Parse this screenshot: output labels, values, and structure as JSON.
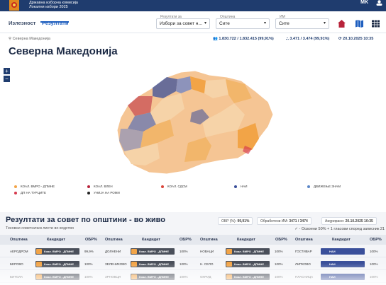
{
  "header": {
    "site_title_line1": "Државна изборна комисија",
    "site_title_line2": "Локални избори 2025",
    "lang": "MK"
  },
  "nav": {
    "tabs": [
      "Излезност",
      "Резултати"
    ],
    "active_tab": "Резултати",
    "selects": [
      {
        "label": "Резултати за",
        "value": "Избори за совет н..."
      },
      {
        "label": "Општина",
        "value": "Сите"
      },
      {
        "label": "ИМ",
        "value": "Сите"
      }
    ],
    "icons": [
      "home-icon",
      "map-icon",
      "table-icon"
    ]
  },
  "breadcrumb": "Северна Македонија",
  "stats": {
    "voters": "1.830.722 / 1.832.415 (99,91%)",
    "polling_stations": "3.471 / 3.474 (99,91%)",
    "updated": "20.10.2025 10:35"
  },
  "page_title": "Северна Македонија",
  "map": {
    "zoom_in": "+",
    "zoom_out": "−"
  },
  "legend": [
    {
      "label": "КОАЛ. ВМРО - ДПМНЕ",
      "color": "#f2a447"
    },
    {
      "label": "КОАЛ. ВЛЕН",
      "color": "#b8233a"
    },
    {
      "label": "КОАЛ. СДСМ",
      "color": "#d9463a"
    },
    {
      "label": "НАИ",
      "color": "#3a4f9a"
    },
    {
      "label": "ДВИЖЕЊЕ ЗНАМ",
      "color": "#5b86c7"
    },
    {
      "label": "ДП НА ТУРЦИТЕ",
      "color": "#d6394d"
    },
    {
      "label": "УНИЈА НА РОМИ",
      "color": "#222222"
    }
  ],
  "results": {
    "title": "Резултати за совет по општини - во живо",
    "turnout_label": "ОБР (%):",
    "turnout_value": "99,91%",
    "processed_label": "Обработени ИМ:",
    "processed_value": "3471 / 3474",
    "updated_label": "Ажурирано:",
    "updated_value": "20.10.2025 10:35",
    "subtitle": "Тековни советнички листи во водство",
    "note": "- Освоени 50% + 1 гласови според записник 21",
    "columns": [
      "Општина",
      "Кандидат",
      "ОБР%",
      "Општина",
      "Кандидат",
      "ОБР%",
      "Општина",
      "Кандидат",
      "ОБР%",
      "Општина",
      "Кандидат",
      "ОБР%"
    ],
    "rows": [
      [
        {
          "municipality": "АЕРОДРОМ",
          "candidate": "Коал. ВМРО - ДПМНЕ",
          "pct": "99,9%",
          "color": "#f2a447"
        },
        {
          "municipality": "ДОЛНЕНИ",
          "candidate": "Коал. ВМРО - ДПМНЕ",
          "pct": "100%",
          "color": "#f2a447"
        },
        {
          "municipality": "НОВАЦИ",
          "candidate": "Коал. ВМРО - ДПМНЕ",
          "pct": "100%",
          "color": "#f2a447"
        },
        {
          "municipality": "ГОСТИВАР",
          "candidate": "НАИ",
          "pct": "100%",
          "color": "#3a4f9a"
        }
      ],
      [
        {
          "municipality": "БЕРОВО",
          "candidate": "Коал. ВМРО - ДПМНЕ",
          "pct": "100%",
          "color": "#f2a447"
        },
        {
          "municipality": "ЗЕЛЕНИКОВО",
          "candidate": "Коал. ВМРО - ДПМНЕ",
          "pct": "100%",
          "color": "#f2a447"
        },
        {
          "municipality": "Н. СЕЛО",
          "candidate": "Коал. ВМРО - ДПМНЕ",
          "pct": "100%",
          "color": "#f2a447"
        },
        {
          "municipality": "ЛИПКОВО",
          "candidate": "НАИ",
          "pct": "100%",
          "color": "#3a4f9a"
        }
      ],
      [
        {
          "municipality": "БИТОЛА",
          "candidate": "Коал. ВМРО - ДПМНЕ",
          "pct": "100%",
          "color": "#f2a447"
        },
        {
          "municipality": "ЗРНОВЦИ",
          "candidate": "Коал. ВМРО - ДПМНЕ",
          "pct": "100%",
          "color": "#f2a447"
        },
        {
          "municipality": "ОХРИД",
          "candidate": "Коал. ВМРО - ДПМНЕ",
          "pct": "100%",
          "color": "#f2a447"
        },
        {
          "municipality": "ПЛАСНИЦА",
          "candidate": "НАИ",
          "pct": "100%",
          "color": "#3a4f9a"
        }
      ]
    ]
  }
}
